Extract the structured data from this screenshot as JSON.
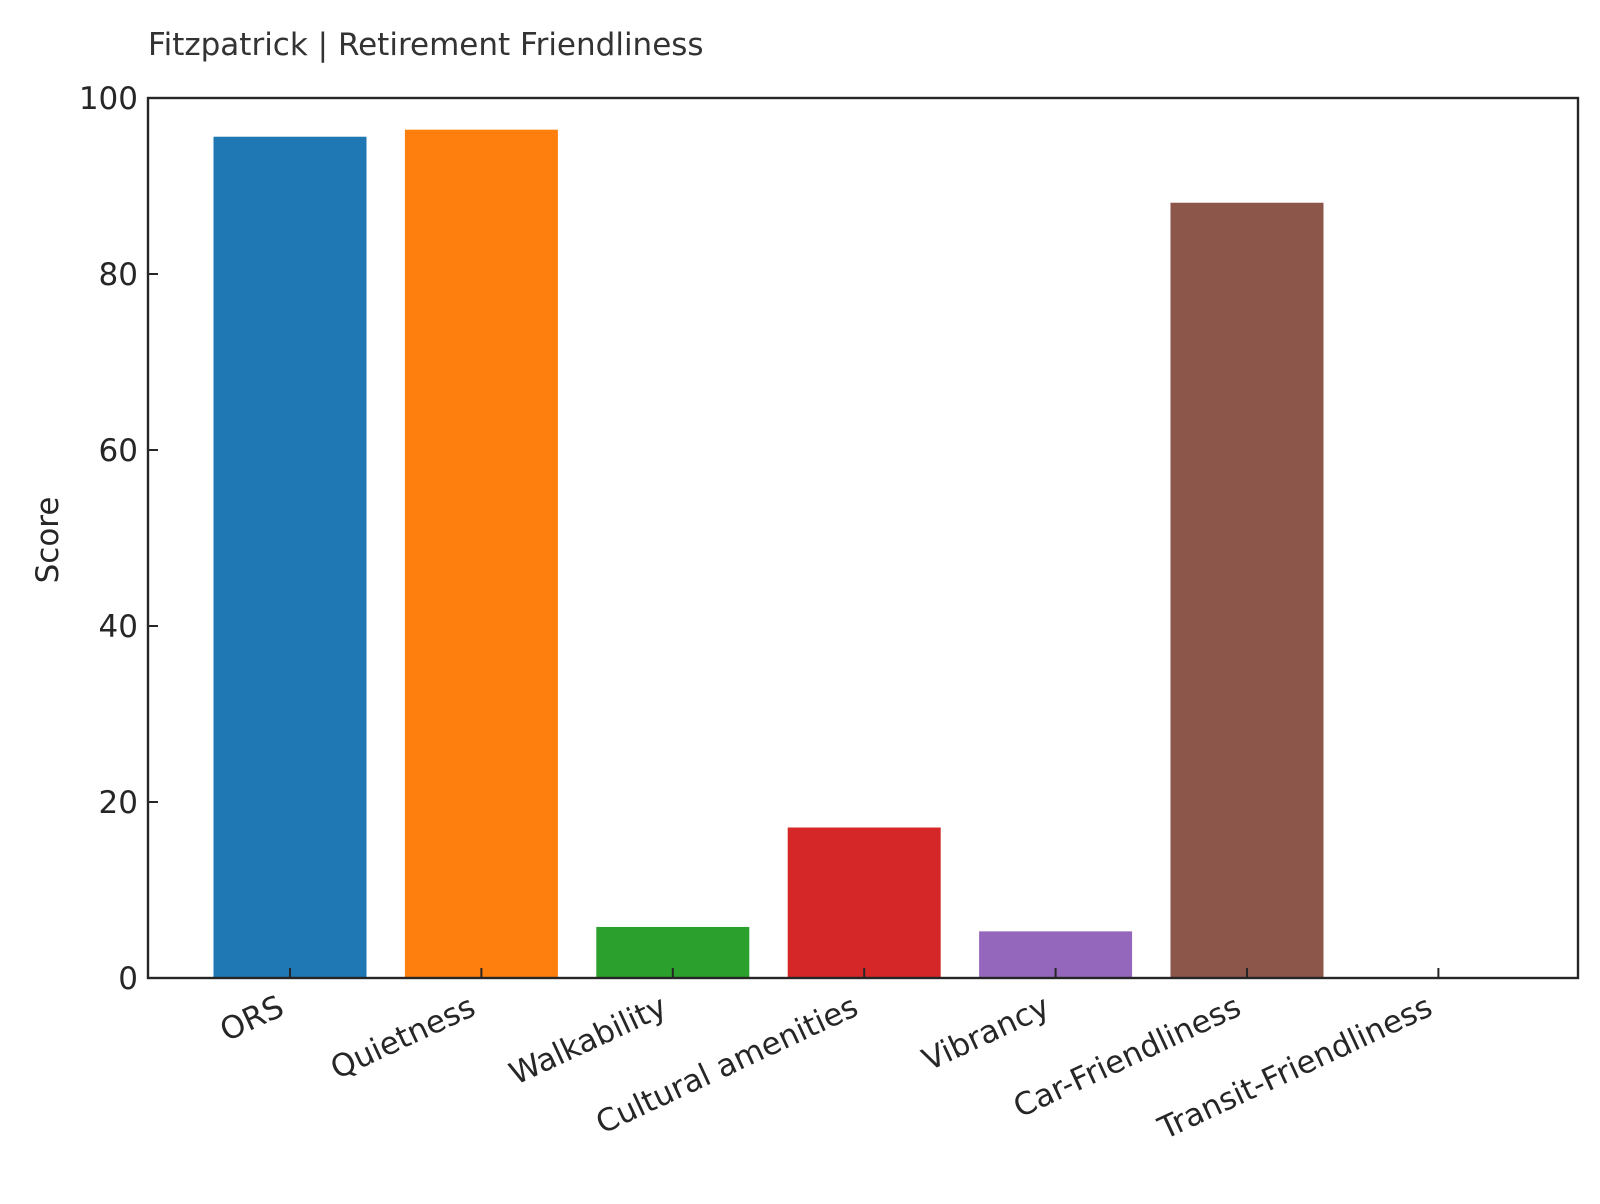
{
  "chart_data": {
    "type": "bar",
    "title": "Fitzpatrick | Retirement Friendliness",
    "xlabel": "",
    "ylabel": "Score",
    "ylim": [
      0,
      100
    ],
    "yticks": [
      "0",
      "20",
      "40",
      "60",
      "80",
      "100"
    ],
    "grid": false,
    "categories": [
      "ORS",
      "Quietness",
      "Walkability",
      "Cultural amenities",
      "Vibrancy",
      "Car-Friendliness",
      "Transit-Friendliness"
    ],
    "values": [
      95.6,
      96.4,
      5.8,
      17.1,
      5.3,
      88.1,
      0
    ],
    "colors": [
      "#1f77b4",
      "#ff7f0e",
      "#2ca02c",
      "#d62728",
      "#9467bd",
      "#8c564b",
      "#e377c2"
    ]
  }
}
